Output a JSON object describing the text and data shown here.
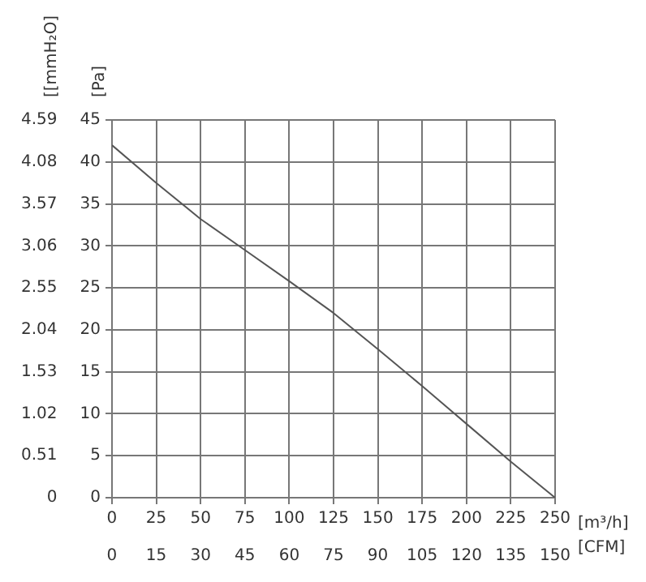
{
  "chart_data": {
    "type": "line",
    "xlabel": "[m³/h]",
    "x2label": "[CFM]",
    "ylabel": "[Pa]",
    "y2label": "[[mmH₂O]",
    "x": [
      0,
      25,
      50,
      75,
      100,
      125,
      150,
      175,
      200,
      225,
      250
    ],
    "series": [
      {
        "color": "#555555",
        "values": [
          42,
          37.5,
          33.2,
          29.5,
          25.8,
          22,
          17.7,
          13.3,
          8.8,
          4.3,
          0
        ]
      }
    ],
    "xlim": [
      0,
      250
    ],
    "xticks": [
      0,
      25,
      50,
      75,
      100,
      125,
      150,
      175,
      200,
      225,
      250
    ],
    "x2lim": [
      0,
      150
    ],
    "x2ticks": [
      0,
      15,
      30,
      45,
      60,
      75,
      90,
      105,
      120,
      135,
      150
    ],
    "ylim": [
      0,
      45
    ],
    "yticks": [
      0,
      5,
      10,
      15,
      20,
      25,
      30,
      35,
      40,
      45
    ],
    "y2lim": [
      0,
      4.59
    ],
    "y2ticks": [
      0,
      0.51,
      1.02,
      1.53,
      2.04,
      2.55,
      3.06,
      3.57,
      4.08,
      4.59
    ],
    "grid": true,
    "legend": false,
    "marker": "none",
    "line_style": "solid"
  }
}
